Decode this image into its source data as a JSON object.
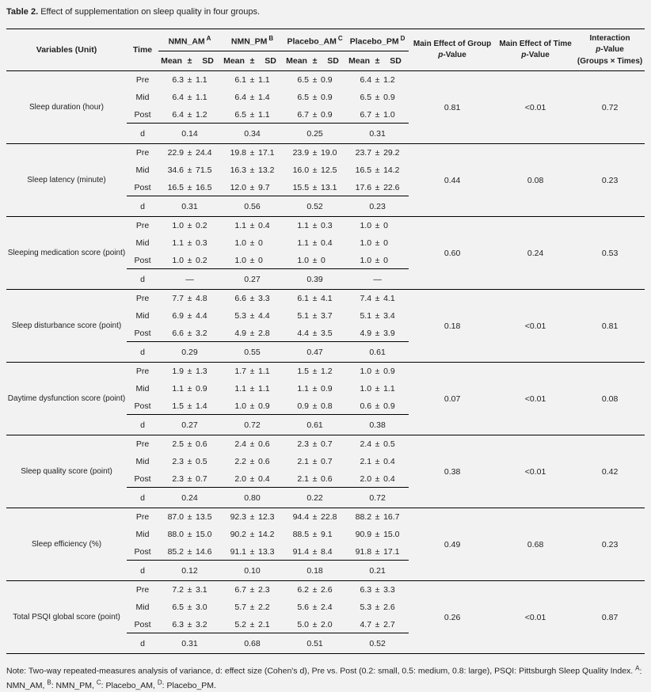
{
  "title": {
    "label": "Table 2.",
    "text": " Effect of supplementation on sleep quality in four groups."
  },
  "table": {
    "header": {
      "variables": "Variables (Unit)",
      "time": "Time",
      "groups": [
        {
          "name": "NMN_AM",
          "sup": "A"
        },
        {
          "name": "NMN_PM",
          "sup": "B"
        },
        {
          "name": "Placebo_AM",
          "sup": "C"
        },
        {
          "name": "Placebo_PM",
          "sup": "D"
        }
      ],
      "mean": "Mean",
      "pm": "±",
      "sd": "SD",
      "p_italic": "p",
      "p_rest": "-Value",
      "p_cols": [
        {
          "title": "Main Effect of Group"
        },
        {
          "title": "Main Effect of Time"
        },
        {
          "title": "Interaction",
          "extra": "(Groups × Times)"
        }
      ]
    },
    "plus_minus": "±",
    "d_label": "d",
    "blocks": [
      {
        "variable": "Sleep duration (hour)",
        "rows": [
          {
            "time": "Pre",
            "values": [
              [
                "6.3",
                "1.1"
              ],
              [
                "6.1",
                "1.1"
              ],
              [
                "6.5",
                "0.9"
              ],
              [
                "6.4",
                "1.2"
              ]
            ]
          },
          {
            "time": "Mid",
            "values": [
              [
                "6.4",
                "1.1"
              ],
              [
                "6.4",
                "1.4"
              ],
              [
                "6.5",
                "0.9"
              ],
              [
                "6.5",
                "0.9"
              ]
            ]
          },
          {
            "time": "Post",
            "values": [
              [
                "6.4",
                "1.2"
              ],
              [
                "6.5",
                "1.1"
              ],
              [
                "6.7",
                "0.9"
              ],
              [
                "6.7",
                "1.0"
              ]
            ]
          }
        ],
        "d": [
          "0.14",
          "0.34",
          "0.25",
          "0.31"
        ],
        "p_group": "0.81",
        "p_time": "<0.01",
        "p_interaction": "0.72"
      },
      {
        "variable": "Sleep latency (minute)",
        "rows": [
          {
            "time": "Pre",
            "values": [
              [
                "22.9",
                "24.4"
              ],
              [
                "19.8",
                "17.1"
              ],
              [
                "23.9",
                "19.0"
              ],
              [
                "23.7",
                "29.2"
              ]
            ]
          },
          {
            "time": "Mid",
            "values": [
              [
                "34.6",
                "71.5"
              ],
              [
                "16.3",
                "13.2"
              ],
              [
                "16.0",
                "12.5"
              ],
              [
                "16.5",
                "14.2"
              ]
            ]
          },
          {
            "time": "Post",
            "values": [
              [
                "16.5",
                "16.5"
              ],
              [
                "12.0",
                "9.7"
              ],
              [
                "15.5",
                "13.1"
              ],
              [
                "17.6",
                "22.6"
              ]
            ]
          }
        ],
        "d": [
          "0.31",
          "0.56",
          "0.52",
          "0.23"
        ],
        "p_group": "0.44",
        "p_time": "0.08",
        "p_interaction": "0.23"
      },
      {
        "variable": "Sleeping medication score (point)",
        "rows": [
          {
            "time": "Pre",
            "values": [
              [
                "1.0",
                "0.2"
              ],
              [
                "1.1",
                "0.4"
              ],
              [
                "1.1",
                "0.3"
              ],
              [
                "1.0",
                "0"
              ]
            ]
          },
          {
            "time": "Mid",
            "values": [
              [
                "1.1",
                "0.3"
              ],
              [
                "1.0",
                "0"
              ],
              [
                "1.1",
                "0.4"
              ],
              [
                "1.0",
                "0"
              ]
            ]
          },
          {
            "time": "Post",
            "values": [
              [
                "1.0",
                "0.2"
              ],
              [
                "1.0",
                "0"
              ],
              [
                "1.0",
                "0"
              ],
              [
                "1.0",
                "0"
              ]
            ]
          }
        ],
        "d": [
          "—",
          "0.27",
          "0.39",
          "—"
        ],
        "p_group": "0.60",
        "p_time": "0.24",
        "p_interaction": "0.53"
      },
      {
        "variable": "Sleep disturbance score (point)",
        "rows": [
          {
            "time": "Pre",
            "values": [
              [
                "7.7",
                "4.8"
              ],
              [
                "6.6",
                "3.3"
              ],
              [
                "6.1",
                "4.1"
              ],
              [
                "7.4",
                "4.1"
              ]
            ]
          },
          {
            "time": "Mid",
            "values": [
              [
                "6.9",
                "4.4"
              ],
              [
                "5.3",
                "4.4"
              ],
              [
                "5.1",
                "3.7"
              ],
              [
                "5.1",
                "3.4"
              ]
            ]
          },
          {
            "time": "Post",
            "values": [
              [
                "6.6",
                "3.2"
              ],
              [
                "4.9",
                "2.8"
              ],
              [
                "4.4",
                "3.5"
              ],
              [
                "4.9",
                "3.9"
              ]
            ]
          }
        ],
        "d": [
          "0.29",
          "0.55",
          "0.47",
          "0.61"
        ],
        "p_group": "0.18",
        "p_time": "<0.01",
        "p_interaction": "0.81"
      },
      {
        "variable": "Daytime dysfunction score (point)",
        "rows": [
          {
            "time": "Pre",
            "values": [
              [
                "1.9",
                "1.3"
              ],
              [
                "1.7",
                "1.1"
              ],
              [
                "1.5",
                "1.2"
              ],
              [
                "1.0",
                "0.9"
              ]
            ]
          },
          {
            "time": "Mid",
            "values": [
              [
                "1.1",
                "0.9"
              ],
              [
                "1.1",
                "1.1"
              ],
              [
                "1.1",
                "0.9"
              ],
              [
                "1.0",
                "1.1"
              ]
            ]
          },
          {
            "time": "Post",
            "values": [
              [
                "1.5",
                "1.4"
              ],
              [
                "1.0",
                "0.9"
              ],
              [
                "0.9",
                "0.8"
              ],
              [
                "0.6",
                "0.9"
              ]
            ]
          }
        ],
        "d": [
          "0.27",
          "0.72",
          "0.61",
          "0.38"
        ],
        "p_group": "0.07",
        "p_time": "<0.01",
        "p_interaction": "0.08"
      },
      {
        "variable": "Sleep quality score (point)",
        "rows": [
          {
            "time": "Pre",
            "values": [
              [
                "2.5",
                "0.6"
              ],
              [
                "2.4",
                "0.6"
              ],
              [
                "2.3",
                "0.7"
              ],
              [
                "2.4",
                "0.5"
              ]
            ]
          },
          {
            "time": "Mid",
            "values": [
              [
                "2.3",
                "0.5"
              ],
              [
                "2.2",
                "0.6"
              ],
              [
                "2.1",
                "0.7"
              ],
              [
                "2.1",
                "0.4"
              ]
            ]
          },
          {
            "time": "Post",
            "values": [
              [
                "2.3",
                "0.7"
              ],
              [
                "2.0",
                "0.4"
              ],
              [
                "2.1",
                "0.6"
              ],
              [
                "2.0",
                "0.4"
              ]
            ]
          }
        ],
        "d": [
          "0.24",
          "0.80",
          "0.22",
          "0.72"
        ],
        "p_group": "0.38",
        "p_time": "<0.01",
        "p_interaction": "0.42"
      },
      {
        "variable": "Sleep efficiency (%)",
        "rows": [
          {
            "time": "Pre",
            "values": [
              [
                "87.0",
                "13.5"
              ],
              [
                "92.3",
                "12.3"
              ],
              [
                "94.4",
                "22.8"
              ],
              [
                "88.2",
                "16.7"
              ]
            ]
          },
          {
            "time": "Mid",
            "values": [
              [
                "88.0",
                "15.0"
              ],
              [
                "90.2",
                "14.2"
              ],
              [
                "88.5",
                "9.1"
              ],
              [
                "90.9",
                "15.0"
              ]
            ]
          },
          {
            "time": "Post",
            "values": [
              [
                "85.2",
                "14.6"
              ],
              [
                "91.1",
                "13.3"
              ],
              [
                "91.4",
                "8.4"
              ],
              [
                "91.8",
                "17.1"
              ]
            ]
          }
        ],
        "d": [
          "0.12",
          "0.10",
          "0.18",
          "0.21"
        ],
        "p_group": "0.49",
        "p_time": "0.68",
        "p_interaction": "0.23"
      },
      {
        "variable": "Total PSQI global score (point)",
        "rows": [
          {
            "time": "Pre",
            "values": [
              [
                "7.2",
                "3.1"
              ],
              [
                "6.7",
                "2.3"
              ],
              [
                "6.2",
                "2.6"
              ],
              [
                "6.3",
                "3.3"
              ]
            ]
          },
          {
            "time": "Mid",
            "values": [
              [
                "6.5",
                "3.0"
              ],
              [
                "5.7",
                "2.2"
              ],
              [
                "5.6",
                "2.4"
              ],
              [
                "5.3",
                "2.6"
              ]
            ]
          },
          {
            "time": "Post",
            "values": [
              [
                "6.3",
                "3.2"
              ],
              [
                "5.2",
                "2.1"
              ],
              [
                "5.0",
                "2.0"
              ],
              [
                "4.7",
                "2.7"
              ]
            ]
          }
        ],
        "d": [
          "0.31",
          "0.68",
          "0.51",
          "0.52"
        ],
        "p_group": "0.26",
        "p_time": "<0.01",
        "p_interaction": "0.87"
      }
    ]
  },
  "note": {
    "prefix": "Note: Two-way repeated-measures analysis of variance, d: effect size (Cohen's d), Pre vs. Post (0.2: small, 0.5: medium, 0.8: large), PSQI: Pittsburgh Sleep Quality Index.",
    "legend": [
      {
        "sup": "A",
        "label": "NMN_AM"
      },
      {
        "sup": "B",
        "label": "NMN_PM"
      },
      {
        "sup": "C",
        "label": "Placebo_AM"
      },
      {
        "sup": "D",
        "label": "Placebo_PM"
      }
    ],
    "end": "."
  },
  "colors": {
    "background": "#f2f2f2",
    "text": "#1f1f1f",
    "rule": "#000000"
  }
}
